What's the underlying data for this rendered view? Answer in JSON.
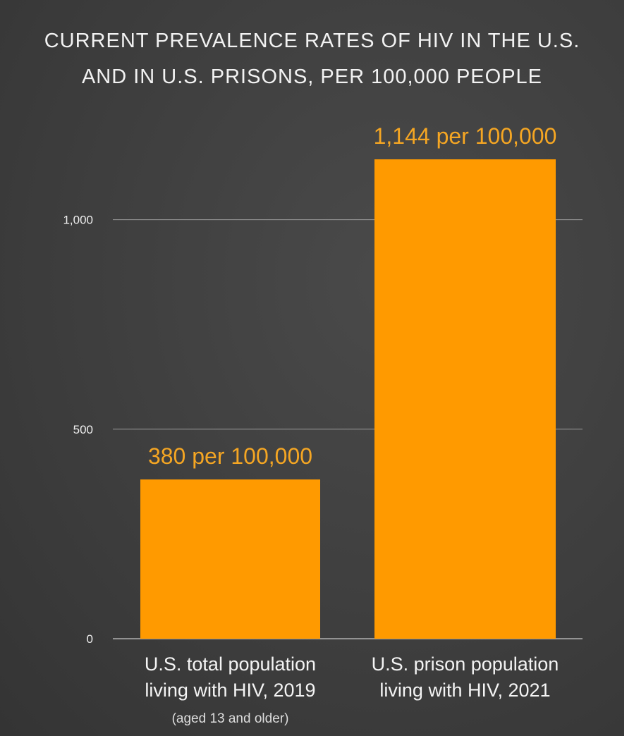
{
  "title_line1": "CURRENT PREVALENCE RATES OF HIV IN THE U.S.",
  "title_line2": "AND IN U.S. PRISONS, PER 100,000 PEOPLE",
  "colors": {
    "bar": "#ff9a00",
    "label": "#f5a623",
    "background": "#3f3f3f",
    "grid": "#9a9a9a"
  },
  "chart_data": {
    "type": "bar",
    "categories": [
      [
        "U.S. total population",
        "living with HIV, 2019",
        "(aged 13 and older)"
      ],
      [
        "U.S. prison population",
        "living with HIV, 2021"
      ]
    ],
    "values": [
      380,
      1144
    ],
    "data_labels": [
      "380 per 100,000",
      "1,144 per 100,000"
    ],
    "yticks": [
      0,
      500,
      1000
    ],
    "ytick_labels": [
      "0",
      "500",
      "1,000"
    ],
    "ylim": [
      0,
      1144
    ],
    "grid": true
  }
}
